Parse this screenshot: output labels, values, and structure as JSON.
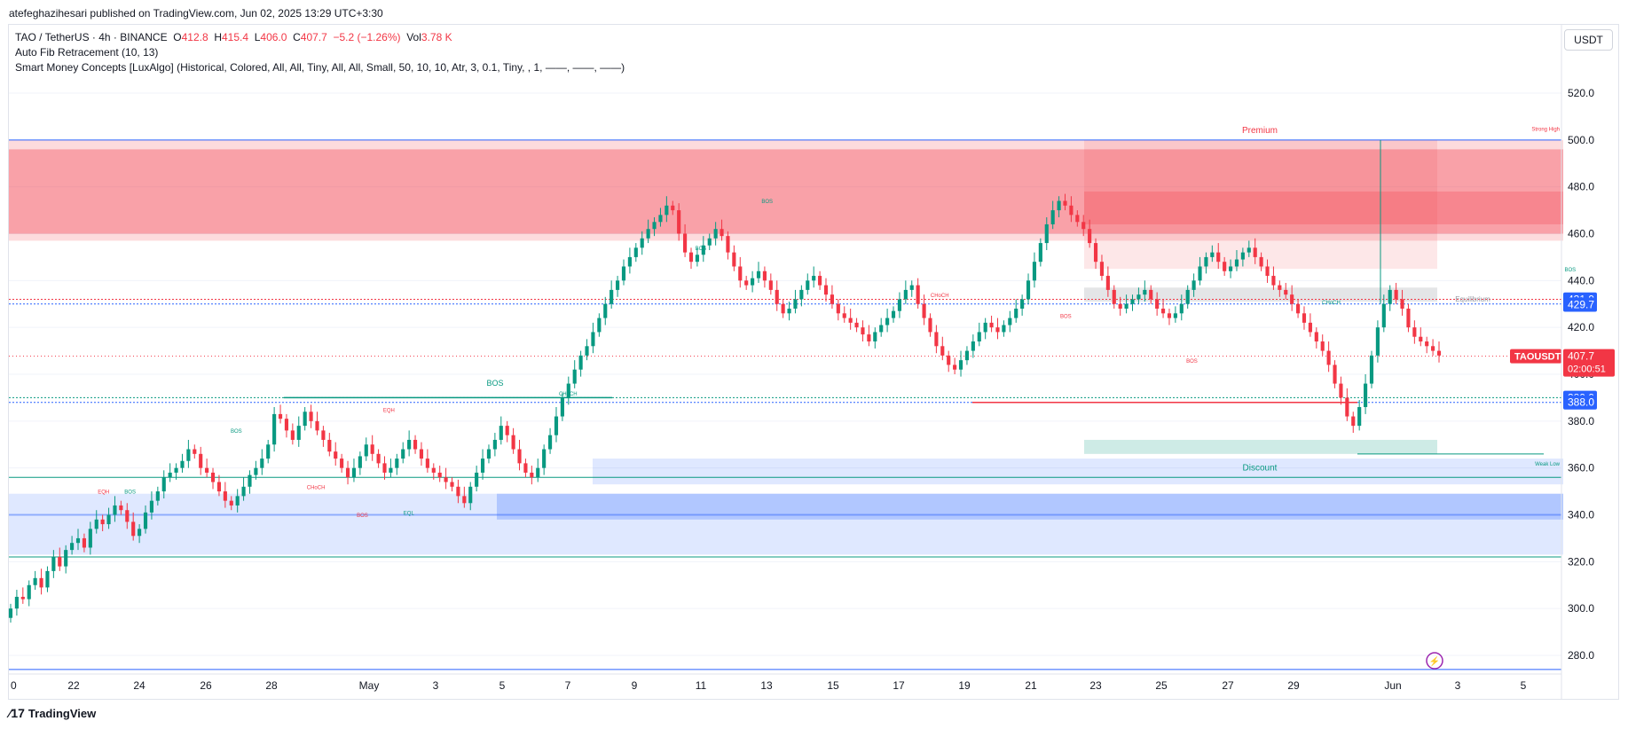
{
  "header": {
    "publisher": "atefeghazihesari published on TradingView.com, Jun 02, 2025 13:29 UTC+3:30"
  },
  "legend": {
    "symbol": "TAO / TetherUS · 4h · BINANCE",
    "o_label": "O",
    "o_val": "412.8",
    "h_label": "H",
    "h_val": "415.4",
    "l_label": "L",
    "l_val": "406.0",
    "c_label": "C",
    "c_val": "407.7",
    "change": "−5.2 (−1.26%)",
    "vol_label": "Vol",
    "vol_val": "3.78 K",
    "indicator1": "Auto Fib Retracement (10, 13)",
    "indicator2": "Smart Money Concepts [LuxAlgo] (Historical, Colored, All, All, Tiny, All, All, Small, 50, 10, 10, Atr, 3, 0.1, Tiny, , 1, ——, ——, ——)"
  },
  "currency": "USDT",
  "footer": {
    "brand": "TradingView"
  },
  "colors": {
    "up": "#089981",
    "down": "#f23645",
    "premium": "#f23645",
    "discount": "#2962ff",
    "grid": "#f0f3fa"
  },
  "chart_data": {
    "type": "candlestick",
    "ylim": [
      272,
      528
    ],
    "y_ticks": [
      280,
      300,
      320,
      340,
      360,
      380,
      400,
      420,
      440,
      460,
      480,
      500,
      520
    ],
    "y_tick_labels": [
      "280.0",
      "300.0",
      "320.0",
      "340.0",
      "360.0",
      "380.0",
      "400.0",
      "420.0",
      "440.0",
      "460.0",
      "480.0",
      "500.0",
      "520.0"
    ],
    "x_ticks": [
      "0",
      "22",
      "24",
      "26",
      "28",
      "May",
      "3",
      "5",
      "7",
      "9",
      "11",
      "13",
      "15",
      "17",
      "19",
      "21",
      "23",
      "25",
      "27",
      "29",
      "Jun",
      "3",
      "5"
    ],
    "x_tick_dates": [
      "2025-04-20",
      "2025-04-22",
      "2025-04-24",
      "2025-04-26",
      "2025-04-28",
      "2025-05-01",
      "2025-05-03",
      "2025-05-05",
      "2025-05-07",
      "2025-05-09",
      "2025-05-11",
      "2025-05-13",
      "2025-05-15",
      "2025-05-17",
      "2025-05-19",
      "2025-05-21",
      "2025-05-23",
      "2025-05-25",
      "2025-05-27",
      "2025-05-29",
      "2025-06-01",
      "2025-06-03",
      "2025-06-05"
    ],
    "last_price": 407.7,
    "price_labels": [
      {
        "value": 431.9,
        "text": "431.9",
        "color": "#2962ff"
      },
      {
        "value": 429.7,
        "text": "429.7",
        "color": "#2962ff"
      },
      {
        "value": 389.9,
        "text": "389.9",
        "color": "#2962ff"
      },
      {
        "value": 388.0,
        "text": "388.0",
        "color": "#2962ff"
      }
    ],
    "symbol_tag": "TAOUSDT",
    "countdown": "02:00:51",
    "candles_close": [
      300,
      305,
      304,
      310,
      313,
      309,
      316,
      322,
      318,
      325,
      328,
      330,
      326,
      334,
      338,
      336,
      340,
      344,
      342,
      337,
      331,
      334,
      341,
      346,
      350,
      356,
      358,
      360,
      363,
      368,
      366,
      360,
      358,
      354,
      350,
      346,
      344,
      348,
      352,
      357,
      360,
      364,
      370,
      383,
      381,
      376,
      372,
      378,
      384,
      380,
      376,
      372,
      367,
      364,
      360,
      356,
      360,
      365,
      370,
      366,
      362,
      358,
      360,
      364,
      368,
      372,
      368,
      364,
      360,
      358,
      356,
      354,
      352,
      348,
      345,
      352,
      358,
      364,
      368,
      372,
      378,
      374,
      368,
      362,
      358,
      356,
      360,
      368,
      374,
      382,
      390,
      396,
      402,
      408,
      412,
      418,
      424,
      430,
      436,
      440,
      446,
      450,
      454,
      458,
      462,
      465,
      468,
      472,
      470,
      460,
      452,
      448,
      451,
      455,
      458,
      462,
      459,
      452,
      446,
      440,
      438,
      441,
      444,
      440,
      436,
      430,
      426,
      428,
      432,
      436,
      440,
      442,
      438,
      434,
      430,
      426,
      424,
      422,
      420,
      417,
      414,
      418,
      421,
      424,
      427,
      432,
      436,
      438,
      430,
      424,
      418,
      412,
      408,
      404,
      402,
      406,
      410,
      414,
      418,
      422,
      420,
      418,
      421,
      424,
      428,
      432,
      440,
      448,
      456,
      464,
      470,
      474,
      472,
      468,
      465,
      462,
      456,
      448,
      442,
      436,
      430,
      428,
      430,
      432,
      434,
      436,
      432,
      428,
      426,
      424,
      426,
      430,
      436,
      440,
      446,
      450,
      452,
      448,
      444,
      446,
      449,
      452,
      454,
      450,
      446,
      442,
      438,
      436,
      434,
      430,
      426,
      422,
      418,
      414,
      410,
      404,
      396,
      390,
      382,
      378,
      386,
      396,
      408,
      420,
      430,
      436,
      432,
      428,
      420,
      416,
      414,
      412,
      410,
      408
    ]
  },
  "annotations": {
    "premium": "Premium",
    "discount": "Discount",
    "strong_high": "Strong High",
    "weak_low": "Weak Low",
    "equilibrium": "Equilibrium",
    "labels": [
      {
        "text": "BOS",
        "day": 7.3,
        "price": 395,
        "color": "#089981",
        "size": 9
      },
      {
        "text": "CHoCH",
        "day": 36.7,
        "price": 381,
        "color": "#f23645",
        "size": 9
      },
      {
        "text": "BOS",
        "day": 3.4,
        "price": 375,
        "color": "#089981",
        "size": 6
      },
      {
        "text": "EQH",
        "day": 1.4,
        "price": 349,
        "color": "#f23645",
        "size": 6
      },
      {
        "text": "BOS",
        "day": 1.8,
        "price": 349,
        "color": "#089981",
        "size": 6
      },
      {
        "text": "CHoCH",
        "day": 4.6,
        "price": 351,
        "color": "#f23645",
        "size": 6
      },
      {
        "text": "BOS",
        "day": 5.3,
        "price": 339,
        "color": "#f23645",
        "size": 6
      },
      {
        "text": "EQH",
        "day": 5.7,
        "price": 384,
        "color": "#f23645",
        "size": 6
      },
      {
        "text": "EQL",
        "day": 6.0,
        "price": 340,
        "color": "#089981",
        "size": 6
      },
      {
        "text": "CHoCH",
        "day": 8.4,
        "price": 391,
        "color": "#089981",
        "size": 6
      },
      {
        "text": "BOS",
        "day": 10.4,
        "price": 453,
        "color": "#089981",
        "size": 6
      },
      {
        "text": "BOS",
        "day": 11.4,
        "price": 473,
        "color": "#089981",
        "size": 6
      },
      {
        "text": "CHoCH",
        "day": 14.0,
        "price": 433,
        "color": "#f23645",
        "size": 6
      },
      {
        "text": "BOS",
        "day": 15.9,
        "price": 424,
        "color": "#f23645",
        "size": 6
      },
      {
        "text": "BOS",
        "day": 17.8,
        "price": 405,
        "color": "#f23645",
        "size": 6
      },
      {
        "text": "CHoCH",
        "day": 19.9,
        "price": 430,
        "color": "#089981",
        "size": 6
      },
      {
        "text": "BOS",
        "day": 23.5,
        "price": 444,
        "color": "#089981",
        "size": 6
      },
      {
        "text": "CHoCH",
        "day": 27.7,
        "price": 421,
        "color": "#f23645",
        "size": 6
      }
    ]
  }
}
